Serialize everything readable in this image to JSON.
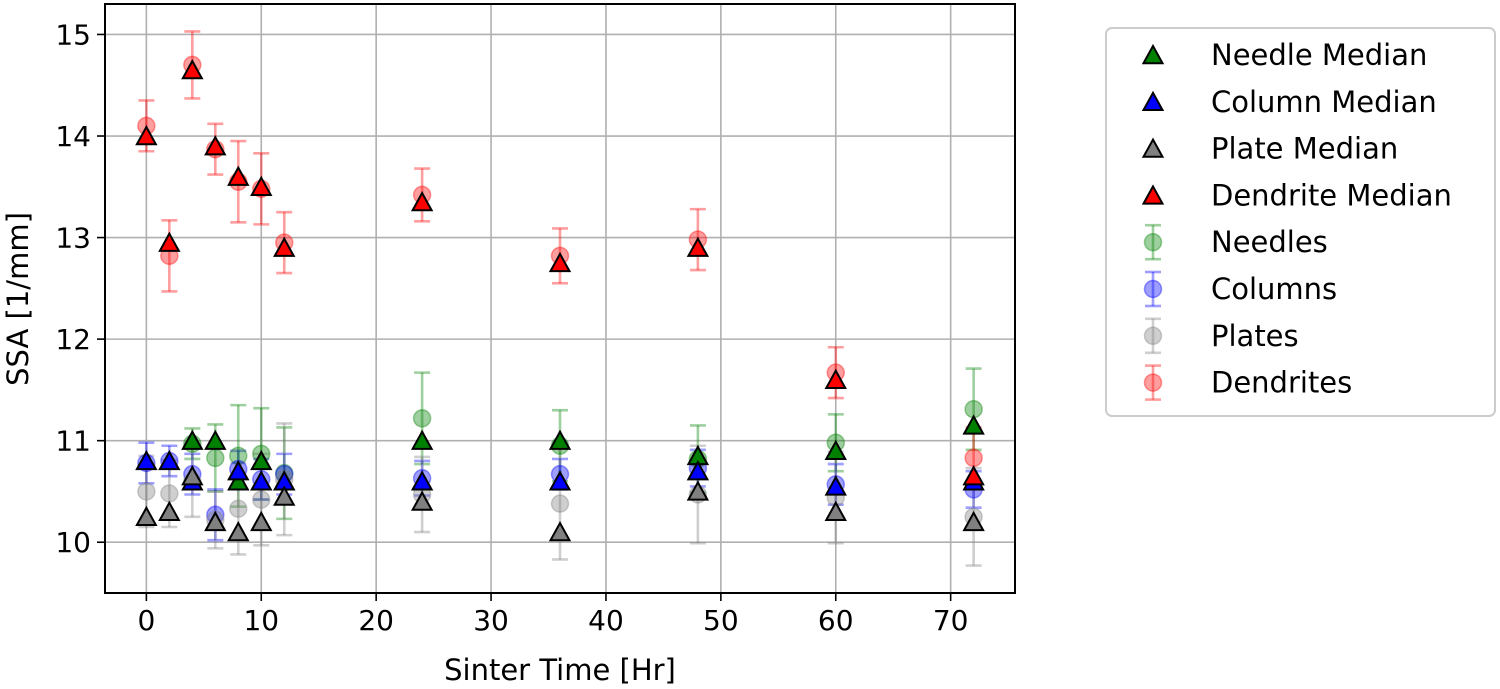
{
  "chart_data": {
    "type": "scatter",
    "title": "",
    "xlabel": "Sinter Time [Hr]",
    "ylabel": "SSA [1/mm]",
    "xlim": [
      -3.6,
      75.6
    ],
    "ylim": [
      9.5,
      15.3
    ],
    "xticks": [
      0,
      10,
      20,
      30,
      40,
      50,
      60,
      70
    ],
    "yticks": [
      10,
      11,
      12,
      13,
      14,
      15
    ],
    "grid": true,
    "legend_position": "outside-right",
    "x": [
      0,
      2,
      4,
      6,
      8,
      10,
      12,
      24,
      36,
      48,
      60,
      72
    ],
    "series": [
      {
        "name": "Needle Median",
        "marker": "triangle",
        "color": "#008000",
        "values": [
          null,
          null,
          11.0,
          11.0,
          10.6,
          10.8,
          10.6,
          11.0,
          11.0,
          10.85,
          10.9,
          11.15
        ]
      },
      {
        "name": "Column Median",
        "marker": "triangle",
        "color": "#0000ff",
        "values": [
          10.8,
          10.8,
          10.6,
          null,
          10.7,
          10.6,
          10.6,
          10.6,
          10.6,
          10.7,
          10.55,
          10.6
        ]
      },
      {
        "name": "Plate Median",
        "marker": "triangle",
        "color": "#808080",
        "values": [
          10.25,
          10.3,
          10.65,
          10.2,
          10.1,
          10.2,
          10.45,
          10.4,
          10.1,
          10.5,
          10.3,
          10.2
        ]
      },
      {
        "name": "Dendrite Median",
        "marker": "triangle",
        "color": "#ff0000",
        "values": [
          14.0,
          12.95,
          14.65,
          13.9,
          13.6,
          13.5,
          12.9,
          13.35,
          12.75,
          12.9,
          11.6,
          10.65
        ]
      },
      {
        "name": "Needles",
        "marker": "circle",
        "color": "#008000",
        "values": [
          null,
          null,
          10.97,
          10.83,
          10.85,
          10.87,
          10.68,
          11.22,
          10.95,
          10.82,
          10.98,
          11.31
        ],
        "errors": [
          null,
          null,
          0.15,
          0.33,
          0.5,
          0.45,
          0.45,
          0.45,
          0.35,
          0.33,
          0.28,
          0.4
        ]
      },
      {
        "name": "Columns",
        "marker": "circle",
        "color": "#0000ff",
        "values": [
          10.78,
          10.8,
          10.67,
          10.27,
          10.72,
          10.62,
          10.67,
          10.63,
          10.67,
          10.73,
          10.57,
          10.52
        ],
        "errors": [
          0.2,
          0.15,
          0.2,
          0.25,
          0.18,
          0.2,
          0.2,
          0.17,
          0.15,
          0.18,
          0.2,
          0.18
        ]
      },
      {
        "name": "Plates",
        "marker": "circle",
        "color": "#808080",
        "values": [
          10.5,
          10.48,
          10.6,
          10.22,
          10.33,
          10.42,
          10.62,
          10.47,
          10.38,
          10.47,
          10.44,
          10.25
        ],
        "errors": [
          0.35,
          0.33,
          0.35,
          0.28,
          0.45,
          0.45,
          0.55,
          0.37,
          0.55,
          0.48,
          0.45,
          0.48
        ]
      },
      {
        "name": "Dendrites",
        "marker": "circle",
        "color": "#ff0000",
        "values": [
          14.1,
          12.82,
          14.7,
          13.87,
          13.55,
          13.48,
          12.95,
          13.42,
          12.82,
          12.98,
          11.67,
          10.83
        ],
        "errors": [
          0.25,
          0.35,
          0.33,
          0.25,
          0.4,
          0.35,
          0.3,
          0.26,
          0.27,
          0.3,
          0.25,
          0.3
        ]
      }
    ]
  }
}
